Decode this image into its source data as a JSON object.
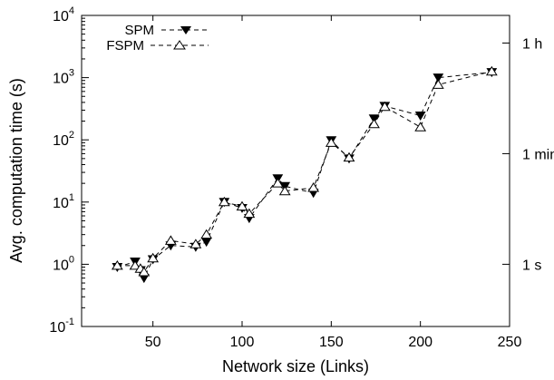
{
  "chart_data": {
    "type": "line",
    "xlabel": "Network size (Links)",
    "ylabel": "Avg. computation time (s)",
    "xlim": [
      10,
      250
    ],
    "ylim": [
      0.1,
      10000
    ],
    "y_scale": "log",
    "x_ticks": [
      {
        "value": 50,
        "label": "50"
      },
      {
        "value": 100,
        "label": "100"
      },
      {
        "value": 150,
        "label": "150"
      },
      {
        "value": 200,
        "label": "200"
      },
      {
        "value": 250,
        "label": "250"
      }
    ],
    "y_ticks": [
      {
        "value": 0.1,
        "base": "10",
        "exp": "-1"
      },
      {
        "value": 1,
        "base": "10",
        "exp": "0"
      },
      {
        "value": 10,
        "base": "10",
        "exp": "1"
      },
      {
        "value": 100,
        "base": "10",
        "exp": "2"
      },
      {
        "value": 1000,
        "base": "10",
        "exp": "3"
      },
      {
        "value": 10000,
        "base": "10",
        "exp": "4"
      }
    ],
    "y2_ticks": [
      {
        "value": 1,
        "label": "1 s"
      },
      {
        "value": 60,
        "label": "1 min"
      },
      {
        "value": 3600,
        "label": "1 h"
      }
    ],
    "grid": false,
    "legend_position": "top-left",
    "series": [
      {
        "name": "SPM",
        "marker": "filled-down-triangle",
        "line_style": "dashed",
        "color": "#000000",
        "x": [
          30,
          40,
          43,
          45,
          50,
          60,
          74,
          80,
          90,
          100,
          104,
          120,
          124,
          140,
          150,
          160,
          174,
          180,
          200,
          210,
          240
        ],
        "y": [
          0.9,
          1.1,
          0.8,
          0.6,
          1.2,
          2.0,
          1.9,
          2.3,
          10.0,
          8.0,
          5.5,
          24.0,
          18.0,
          14.0,
          98.0,
          50.0,
          220.0,
          350.0,
          245.0,
          1000.0,
          1220.0
        ]
      },
      {
        "name": "FSPM",
        "marker": "hollow-up-triangle",
        "line_style": "dashed",
        "color": "#000000",
        "x": [
          30,
          40,
          43,
          45,
          50,
          60,
          74,
          80,
          90,
          100,
          104,
          120,
          124,
          140,
          150,
          160,
          174,
          180,
          200,
          210,
          240
        ],
        "y": [
          0.95,
          0.95,
          0.85,
          0.75,
          1.25,
          2.4,
          2.1,
          3.0,
          10.0,
          8.5,
          6.5,
          20.0,
          15.0,
          17.0,
          90.0,
          52.0,
          180.0,
          340.0,
          160.0,
          770.0,
          1260.0
        ]
      }
    ]
  }
}
